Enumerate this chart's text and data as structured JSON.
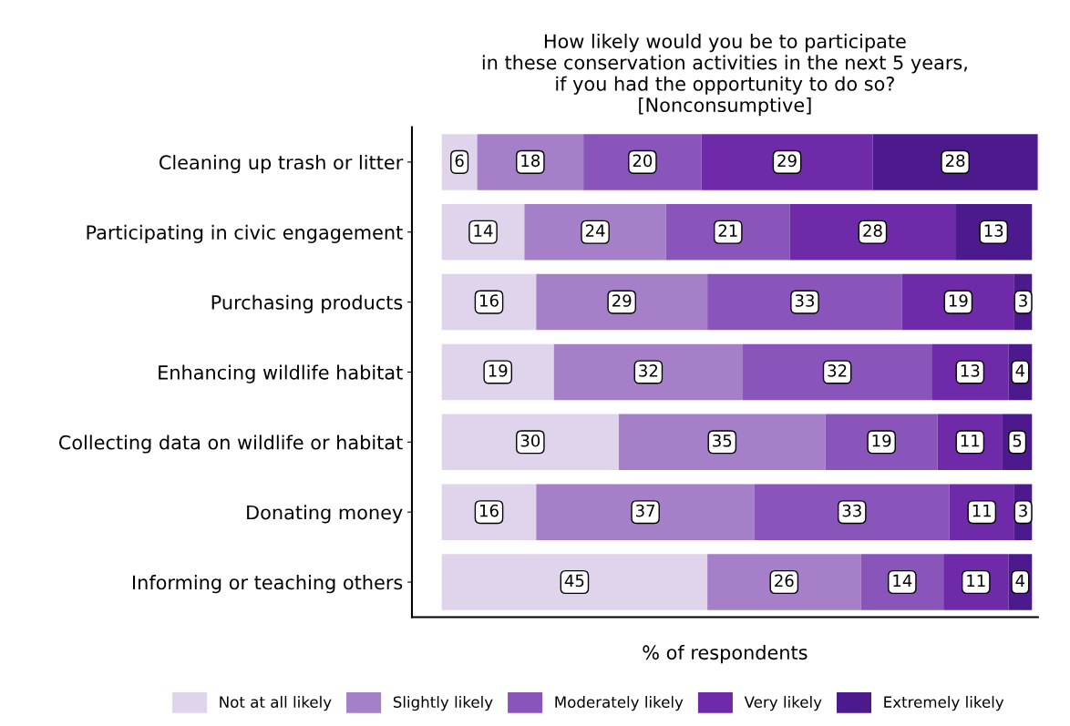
{
  "chart_data": {
    "type": "bar",
    "orientation": "horizontal",
    "stacked": true,
    "data_labels": true,
    "tick_labels": "y",
    "grid": false,
    "legend": "bottom",
    "title": "How likely would you be to participate\nin these conservation activities in the next 5 years,\nif you had the opportunity to do so?\n[Nonconsumptive]",
    "xlabel": "% of respondents",
    "categories": [
      "Cleaning up trash or litter",
      "Participating in civic engagement",
      "Purchasing products",
      "Enhancing wildlife habitat",
      "Collecting data on wildlife or habitat",
      "Donating money",
      "Informing or teaching others"
    ],
    "series": [
      {
        "name": "Not at all likely",
        "color": "#e0d4ec",
        "values": [
          6,
          14,
          16,
          19,
          30,
          16,
          45
        ]
      },
      {
        "name": "Slightly likely",
        "color": "#a57fc8",
        "values": [
          18,
          24,
          29,
          32,
          35,
          37,
          26
        ]
      },
      {
        "name": "Moderately likely",
        "color": "#8a55bb",
        "values": [
          20,
          21,
          33,
          32,
          19,
          33,
          14
        ]
      },
      {
        "name": "Very likely",
        "color": "#6e2aa8",
        "values": [
          29,
          28,
          19,
          13,
          11,
          11,
          11
        ]
      },
      {
        "name": "Extremely likely",
        "color": "#4c1a8c",
        "values": [
          28,
          13,
          3,
          4,
          5,
          3,
          4
        ]
      }
    ]
  }
}
